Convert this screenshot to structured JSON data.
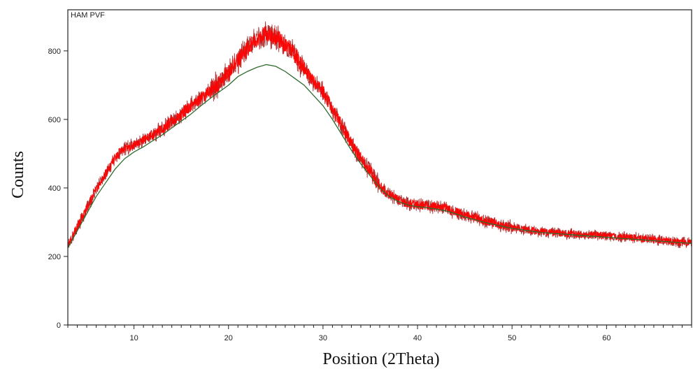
{
  "chart_data": {
    "type": "line",
    "title": "HAM PVF",
    "xlabel": "Position (2Theta)",
    "ylabel": "Counts",
    "xlim": [
      3,
      69
    ],
    "ylim": [
      0,
      920
    ],
    "x_ticks": [
      10,
      20,
      30,
      40,
      50,
      60
    ],
    "y_ticks": [
      0,
      200,
      400,
      600,
      800
    ],
    "grid": false,
    "series": [
      {
        "x": [
          3,
          4,
          5,
          6,
          7,
          8,
          9,
          10,
          11,
          12,
          13,
          14,
          15,
          16,
          17,
          18,
          19,
          20,
          21,
          22,
          23,
          24,
          25,
          26,
          27,
          28,
          29,
          30,
          31,
          32,
          33,
          34,
          35,
          36,
          37,
          38,
          39,
          40,
          41,
          42,
          43,
          44,
          45,
          46,
          47,
          48,
          49,
          50,
          51,
          52,
          53,
          54,
          55,
          56,
          57,
          58,
          59,
          60,
          61,
          62,
          63,
          64,
          65,
          66,
          67,
          68,
          69
        ],
        "values": [
          235,
          285,
          340,
          395,
          440,
          490,
          515,
          525,
          540,
          555,
          570,
          595,
          615,
          640,
          660,
          685,
          705,
          735,
          770,
          805,
          835,
          850,
          840,
          820,
          790,
          750,
          710,
          680,
          630,
          580,
          530,
          485,
          450,
          405,
          380,
          365,
          355,
          350,
          350,
          345,
          340,
          330,
          320,
          315,
          305,
          300,
          290,
          285,
          280,
          275,
          272,
          270,
          268,
          266,
          264,
          262,
          262,
          260,
          258,
          256,
          254,
          252,
          250,
          246,
          243,
          240,
          240
        ]
      },
      {
        "x": [
          3,
          4,
          5,
          6,
          7,
          8,
          9,
          10,
          11,
          12,
          13,
          14,
          15,
          16,
          17,
          18,
          19,
          20,
          21,
          22,
          23,
          24,
          25,
          26,
          27,
          28,
          29,
          30,
          31,
          32,
          33,
          34,
          35,
          36,
          37,
          38,
          39,
          40,
          41,
          42,
          43,
          44,
          45,
          46,
          47,
          48,
          49,
          50,
          51,
          52,
          53,
          54,
          55,
          56,
          57,
          58,
          59,
          60,
          61,
          62,
          63,
          64,
          65,
          66,
          67,
          68,
          69
        ],
        "values": [
          225,
          275,
          325,
          375,
          415,
          455,
          485,
          505,
          520,
          538,
          555,
          575,
          595,
          615,
          638,
          660,
          680,
          700,
          725,
          740,
          752,
          760,
          755,
          740,
          720,
          700,
          670,
          640,
          600,
          555,
          510,
          470,
          435,
          400,
          375,
          360,
          350,
          345,
          343,
          338,
          333,
          325,
          315,
          308,
          300,
          294,
          288,
          282,
          278,
          274,
          270,
          268,
          266,
          264,
          262,
          260,
          258,
          256,
          254,
          252,
          250,
          248,
          246,
          244,
          242,
          240,
          238
        ]
      }
    ],
    "colors": {
      "noisy": "#ff0000",
      "noisy_dark": "#9b0000",
      "fit": "#2f6b2f",
      "axes": "#222222",
      "background": "#ffffff"
    }
  }
}
